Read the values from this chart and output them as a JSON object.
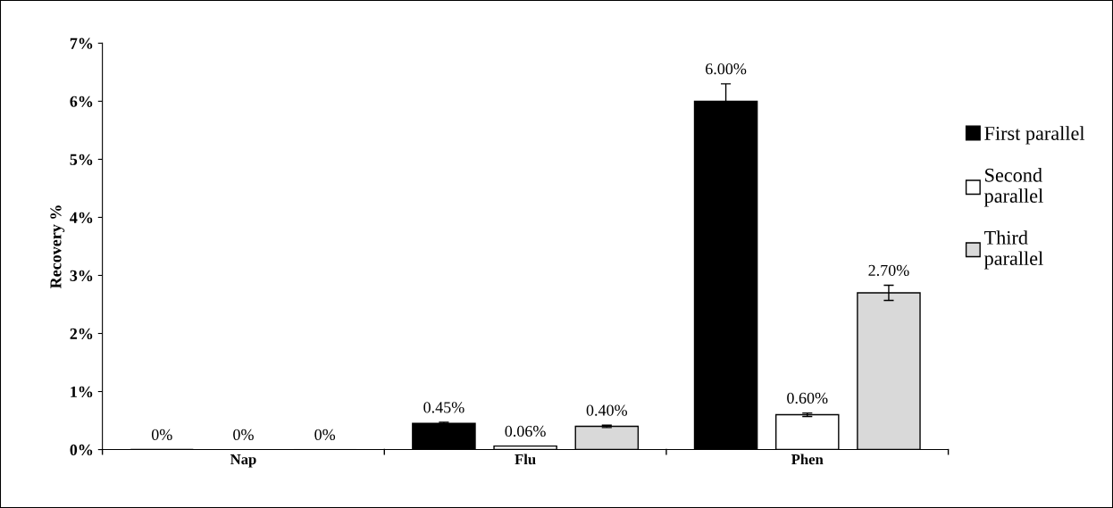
{
  "chart_data": {
    "type": "bar",
    "ylabel": "Recovery %",
    "categories": [
      "Nap",
      "Flu",
      "Phen"
    ],
    "series": [
      {
        "name": "First parallel",
        "color": "#000000",
        "values": [
          0,
          0.45,
          6.0
        ],
        "errors": [
          null,
          0.02,
          0.3
        ],
        "value_labels": [
          "0%",
          "0.45%",
          "6.00%"
        ]
      },
      {
        "name": "Second\nparallel",
        "color": "#ffffff",
        "values": [
          0,
          0.06,
          0.6
        ],
        "errors": [
          null,
          null,
          0.03
        ],
        "value_labels": [
          "0%",
          "0.06%",
          "0.60%"
        ]
      },
      {
        "name": "Third\nparallel",
        "color": "#d9d9d9",
        "values": [
          0,
          0.4,
          2.7
        ],
        "errors": [
          null,
          0.02,
          0.13
        ],
        "value_labels": [
          "0%",
          "0.40%",
          "2.70%"
        ]
      }
    ],
    "ylim": [
      0,
      7
    ],
    "yticks": [
      {
        "value": 0,
        "label": "0%"
      },
      {
        "value": 1,
        "label": "1%"
      },
      {
        "value": 2,
        "label": "2%"
      },
      {
        "value": 3,
        "label": "3%"
      },
      {
        "value": 4,
        "label": "4%"
      },
      {
        "value": 5,
        "label": "5%"
      },
      {
        "value": 6,
        "label": "6%"
      },
      {
        "value": 7,
        "label": "7%"
      }
    ],
    "grid": false,
    "legend": "right"
  }
}
